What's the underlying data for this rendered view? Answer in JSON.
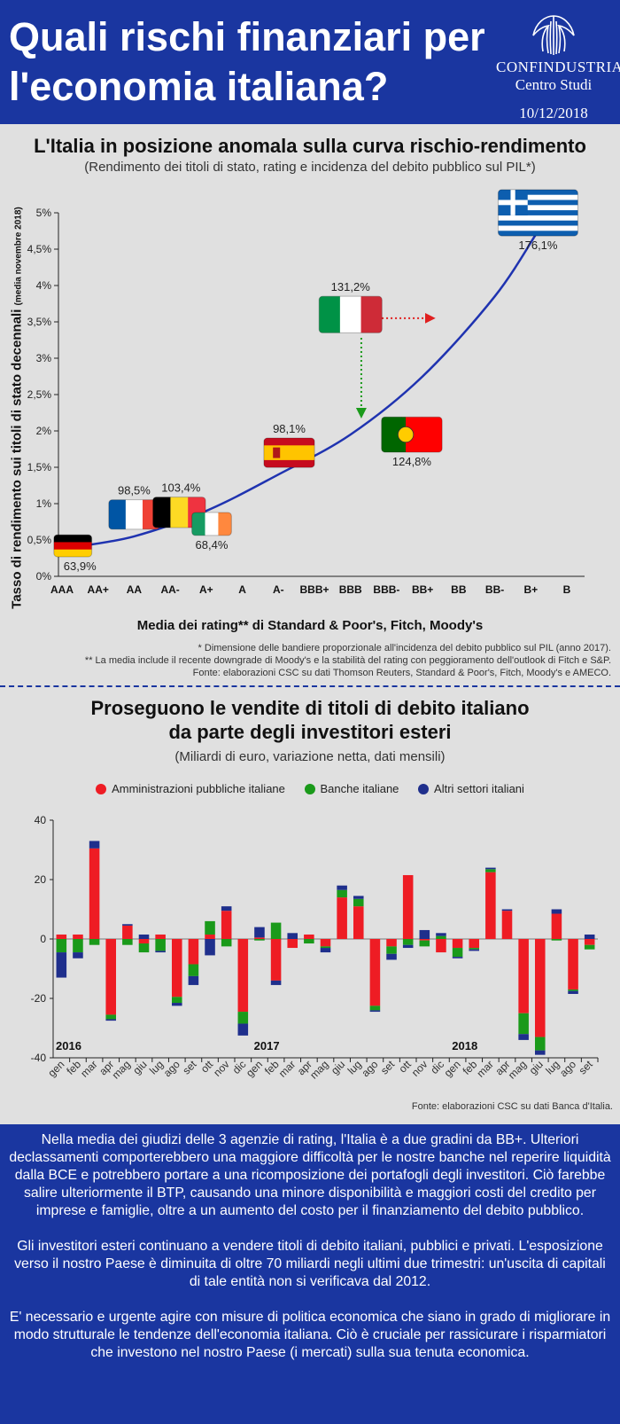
{
  "header": {
    "title": "Quali rischi finanziari per l'economia italiana?",
    "logo_name": "CONFINDUSTRIA",
    "logo_sub": "Centro Studi",
    "date": "10/12/2018"
  },
  "section1": {
    "title": "L'Italia in posizione anomala sulla curva rischio-rendimento",
    "subtitle": "(Rendimento dei titoli di stato, rating e incidenza del debito pubblico sul PIL*)",
    "ylabel_main": "Tasso di rendimento sui titoli di stato decennali",
    "ylabel_note": "(media novembre 2018)",
    "xlabel": "Media dei rating** di Standard & Poor's, Fitch, Moody's",
    "note1": "* Dimensione delle bandiere proporzionale all'incidenza del debito pubblico sul PIL (anno 2017).",
    "note2": "** La media include il recente downgrade di Moody's e la stabilità del rating con peggioramento dell'outlook di Fitch e S&P.",
    "note3": "Fonte: elaborazioni CSC su dati Thomson Reuters, Standard & Poor's, Fitch, Moody's e AMECO."
  },
  "chart_data": [
    {
      "type": "scatter",
      "title": "L'Italia in posizione anomala sulla curva rischio-rendimento",
      "xlabel": "Media dei rating** di Standard & Poor's, Fitch, Moody's",
      "ylabel": "Tasso di rendimento sui titoli di stato decennali (media novembre 2018)",
      "x_categories": [
        "AAA",
        "AA+",
        "AA",
        "AA-",
        "A+",
        "A",
        "A-",
        "BBB+",
        "BBB",
        "BBB-",
        "BB+",
        "BB",
        "BB-",
        "B+",
        "B"
      ],
      "y_ticks": [
        "0%",
        "0,5%",
        "1%",
        "1,5%",
        "2%",
        "2,5%",
        "3%",
        "3,5%",
        "4%",
        "4,5%",
        "5%"
      ],
      "ylim": [
        0,
        5
      ],
      "points": [
        {
          "country": "Germania",
          "x": 0.3,
          "y": 0.42,
          "label": "63,9%",
          "flag": [
            "#000000",
            "#dd0000",
            "#ffce00"
          ],
          "orient": "h"
        },
        {
          "country": "Francia",
          "x": 2.0,
          "y": 0.85,
          "label": "98,5%",
          "flag": [
            "#0055a4",
            "#ffffff",
            "#ef4135"
          ],
          "orient": "v"
        },
        {
          "country": "Belgio",
          "x": 3.25,
          "y": 0.88,
          "label": "103,4%",
          "flag": [
            "#000000",
            "#fdda24",
            "#ef3340"
          ],
          "orient": "v"
        },
        {
          "country": "Irlanda",
          "x": 4.15,
          "y": 0.72,
          "label": "68,4%",
          "flag": [
            "#169b62",
            "#ffffff",
            "#ff883e"
          ],
          "orient": "v"
        },
        {
          "country": "Spagna",
          "x": 6.3,
          "y": 1.7,
          "label": "98,1%",
          "flag": [
            "#c60b1e",
            "#ffc400",
            "#c60b1e"
          ],
          "orient": "h"
        },
        {
          "country": "Italia",
          "x": 8.0,
          "y": 3.6,
          "label": "131,2%",
          "flag": [
            "#009246",
            "#ffffff",
            "#ce2b37"
          ],
          "orient": "v"
        },
        {
          "country": "Portogallo",
          "x": 9.7,
          "y": 1.95,
          "label": "124,8%",
          "flag": [
            "#006600",
            "#ff0000",
            "#ff0000"
          ],
          "orient": "v"
        },
        {
          "country": "Grecia",
          "x": 13.2,
          "y": 5.0,
          "label": "176,1%",
          "flag": [
            "#0d5eaf",
            "#ffffff"
          ],
          "orient": "greece"
        }
      ],
      "curve": [
        [
          0.3,
          0.4
        ],
        [
          2.0,
          0.55
        ],
        [
          4.0,
          0.9
        ],
        [
          6.0,
          1.4
        ],
        [
          8.0,
          1.95
        ],
        [
          10.0,
          2.75
        ],
        [
          12.0,
          3.85
        ],
        [
          13.2,
          4.75
        ]
      ],
      "arrows": [
        {
          "color": "#e02020",
          "from": [
            8.5,
            3.55
          ],
          "to": [
            10.3,
            3.55
          ]
        },
        {
          "color": "#1a9a1a",
          "from": [
            8.3,
            3.28
          ],
          "to": [
            8.3,
            2.2
          ]
        }
      ]
    },
    {
      "type": "bar",
      "stacked": true,
      "title": "Proseguono le vendite di titoli di debito italiano da parte degli investitori esteri",
      "subtitle": "(Miliardi di euro, variazione netta, dati mensili)",
      "categories": [
        "gen",
        "feb",
        "mar",
        "apr",
        "mag",
        "giu",
        "lug",
        "ago",
        "set",
        "ott",
        "nov",
        "dic",
        "gen",
        "feb",
        "mar",
        "apr",
        "mag",
        "giu",
        "lug",
        "ago",
        "set",
        "ott",
        "nov",
        "dic",
        "gen",
        "feb",
        "mar",
        "apr",
        "mag",
        "giu",
        "lug",
        "ago",
        "set"
      ],
      "year_labels": [
        {
          "index": 0,
          "label": "2016"
        },
        {
          "index": 12,
          "label": "2017"
        },
        {
          "index": 24,
          "label": "2018"
        }
      ],
      "ylim": [
        -40,
        40
      ],
      "yticks": [
        -40,
        -20,
        0,
        20,
        40
      ],
      "series": [
        {
          "name": "Amministrazioni pubbliche italiane",
          "color": "#ee1c24",
          "values": [
            1.5,
            1.5,
            30.5,
            -25.5,
            4.5,
            -1.5,
            1.5,
            -19.5,
            -8.5,
            1.5,
            9.5,
            -24.5,
            0.5,
            -14,
            -3,
            1.5,
            -2.5,
            14,
            11,
            -22.5,
            -2.5,
            21.5,
            -0.5,
            -4.5,
            -3,
            -3,
            22.5,
            9.5,
            -25,
            -33,
            8.5,
            -17,
            -2
          ]
        },
        {
          "name": "Banche italiane",
          "color": "#1a9a1a",
          "values": [
            -4.5,
            -4.5,
            -2,
            -1.5,
            -2,
            -3,
            -4,
            -2,
            -4,
            4.5,
            -2.5,
            -4,
            -0.5,
            5.5,
            0,
            -1.5,
            -0.5,
            2.5,
            2.5,
            -1.5,
            -2.5,
            -2,
            -2,
            1,
            -3,
            -0.5,
            1,
            0,
            -7,
            -4.5,
            -0.5,
            -0.5,
            -1.5
          ]
        },
        {
          "name": "Altri settori italiani",
          "color": "#1f2f8c",
          "values": [
            -8.5,
            -2,
            2.5,
            -0.5,
            0.5,
            1.5,
            -0.5,
            -1,
            -3,
            -5.5,
            1.5,
            -4,
            3.5,
            -1.5,
            2,
            0,
            -1.5,
            1.5,
            1,
            -0.5,
            -2,
            -1,
            3,
            1,
            -0.5,
            -0.5,
            0.5,
            0.5,
            -2,
            -1.5,
            1.5,
            -1,
            1.5
          ]
        }
      ]
    }
  ],
  "section2": {
    "title_line1": "Proseguono le vendite di titoli di debito italiano",
    "title_line2": "da parte degli investitori esteri",
    "subtitle": "(Miliardi di euro, variazione netta, dati mensili)",
    "legend": [
      "Amministrazioni pubbliche italiane",
      "Banche italiane",
      "Altri settori italiani"
    ],
    "legend_colors": [
      "#ee1c24",
      "#1a9a1a",
      "#1f2f8c"
    ],
    "source": "Fonte: elaborazioni CSC su dati Banca d'Italia."
  },
  "footer": {
    "p1": "Nella media dei giudizi delle 3 agenzie di rating, l'Italia è a due gradini da BB+. Ulteriori declassamenti comporterebbero una maggiore difficoltà per le nostre banche nel reperire liquidità dalla BCE e potrebbero portare a una ricomposizione dei portafogli degli investitori. Ciò farebbe salire ulteriormente il BTP, causando una minore disponibilità e maggiori costi del credito per imprese e famiglie, oltre a un aumento del costo per il finanziamento del debito pubblico.",
    "p2": "Gli investitori esteri continuano a vendere titoli di debito italiani, pubblici e privati. L'esposizione verso il nostro Paese è diminuita di oltre 70 miliardi negli ultimi due trimestri: un'uscita di capitali di tale entità non si verificava dal 2012.",
    "p3": "E' necessario e urgente agire con misure di politica economica che siano in grado di migliorare in modo strutturale le tendenze dell'economia italiana. Ciò è cruciale per rassicurare i risparmiatori che investono nel nostro Paese (i mercati) sulla sua tenuta economica."
  }
}
